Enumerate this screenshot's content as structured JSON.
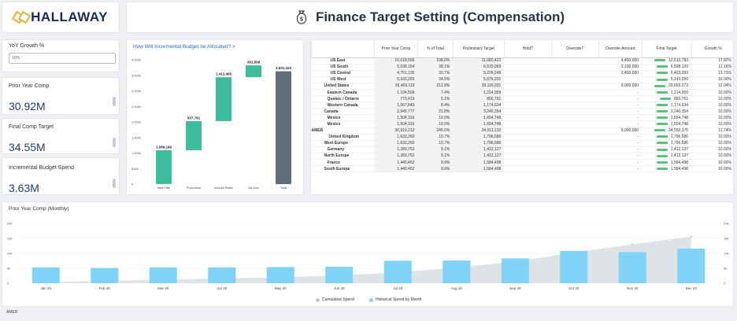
{
  "brand": {
    "name": "HALLAWAY"
  },
  "page": {
    "title": "Finance Target Setting (Compensation)"
  },
  "kpis": {
    "yoy_label": "YoY Growth %",
    "yoy_value": "10%",
    "prior_label": "Prior Year Comp",
    "prior_value": "30.92M",
    "final_label": "Final Comp Target",
    "final_value": "34.55M",
    "incr_label": "Incremental Budget Spend",
    "incr_value": "3.63M"
  },
  "waterfall": {
    "title": "How Will Incremental Budget be Allocated? >",
    "y_ticks": [
      "4,000k",
      "3,500k",
      "3,000k",
      "2,500k",
      "2,000k",
      "1,500k",
      "1,000k",
      "500k",
      "0"
    ]
  },
  "table": {
    "headers": [
      "",
      "Prior Year Comp",
      "% of Total",
      "Preliminary Target",
      "Hold?",
      "Override?",
      "Override Amount",
      "Final Target",
      "Growth %"
    ],
    "rows": [
      [
        "US East",
        "10,618,566",
        "108.6%",
        "11,680,422",
        "",
        "",
        "4,400,000",
        "12,510,783",
        "17.82%"
      ],
      [
        "US South",
        "5,939,154",
        "38.1%",
        "6,533,069",
        "",
        "",
        "3,100,000",
        "6,598,120",
        "11.10%"
      ],
      [
        "US Central",
        "4,751,135",
        "30.7%",
        "5,226,249",
        "",
        "",
        "2,400,000",
        "5,403,393",
        "13.73%"
      ],
      [
        "US West",
        "5,160,265",
        "34.5%",
        "5,676,291",
        "",
        "",
        "-",
        "5,143,050",
        "10.00%"
      ],
      [
        "United States",
        "26,469,119",
        "212.8%",
        "29,116,031",
        "",
        "",
        "9,900,000",
        "29,655,273",
        "12.04%"
      ],
      [
        "Eastern Canada",
        "1,104,509",
        "7.4%",
        "1,214,959",
        "",
        "",
        "-",
        "1,214,959",
        "10.00%"
      ],
      [
        "Quebec / Ontario",
        "773,419",
        "5.1%",
        "850,761",
        "",
        "",
        "-",
        "850,761",
        "10.00%"
      ],
      [
        "Western Canada",
        "1,067,849",
        "8.4%",
        "1,174,634",
        "",
        "",
        "-",
        "1,174,634",
        "10.00%"
      ],
      [
        "Canada",
        "2,945,777",
        "21.8%",
        "3,240,354",
        "",
        "",
        "-",
        "3,240,354",
        "10.00%"
      ],
      [
        "Mexico",
        "1,504,316",
        "10.9%",
        "1,654,748",
        "",
        "",
        "-",
        "1,654,748",
        "10.00%"
      ],
      [
        "Mexico",
        "1,504,316",
        "10.9%",
        "1,654,748",
        "",
        "",
        "-",
        "1,654,748",
        "10.00%"
      ],
      [
        "AMER",
        "30,919,212",
        "245.6%",
        "34,011,133",
        "",
        "",
        "9,900,000",
        "34,550,375",
        "11.74%"
      ],
      [
        "United Kingdom",
        "1,633,260",
        "10.7%",
        "1,796,586",
        "",
        "",
        "-",
        "1,796,586",
        "10.00%"
      ],
      [
        "West Europe",
        "1,633,260",
        "10.7%",
        "1,796,586",
        "",
        "",
        "-",
        "1,796,586",
        "10.00%"
      ],
      [
        "Germany",
        "1,283,752",
        "9.1%",
        "1,412,127",
        "",
        "",
        "-",
        "1,412,127",
        "10.00%"
      ],
      [
        "North Europe",
        "1,283,752",
        "9.1%",
        "1,412,127",
        "",
        "",
        "-",
        "1,412,127",
        "10.00%"
      ],
      [
        "France",
        "1,440,452",
        "9.9%",
        "1,584,498",
        "",
        "",
        "-",
        "1,584,498",
        "10.00%"
      ],
      [
        "South Europe",
        "1,440,452",
        "9.9%",
        "1,584,498",
        "",
        "",
        "-",
        "1,584,498",
        "10.00%"
      ]
    ]
  },
  "monthly": {
    "title": "Prior Year Comp (Monthly)",
    "legend_cumulative": "Cumulative Spend",
    "legend_historical": "Historical Spend by Month",
    "footer": "AMER"
  },
  "colors": {
    "teal": "#3dbd9c",
    "slate": "#5f6e7a",
    "sky": "#7fd3f7",
    "area": "#dfe3e8",
    "green": "#5ac27d"
  },
  "chart_data": [
    {
      "type": "bar",
      "categories": [
        "New Hire",
        "Promotion",
        "Annual Raise",
        "Ad-Hoc",
        "Total"
      ],
      "values": [
        1089149,
        937791,
        1412465,
        381558,
        3631163
      ],
      "data_labels": [
        "1,089,149",
        "937,791",
        "1,412,465",
        "381,558",
        "3,631,163"
      ],
      "ylim": [
        0,
        4000000
      ]
    },
    {
      "type": "bar",
      "categories": [
        "Jan 20",
        "Feb 20",
        "Mar 20",
        "Apr 20",
        "May 20",
        "Jun 20",
        "Jul 20",
        "Aug 20",
        "Sep 20",
        "Oct 20",
        "Nov 20",
        "Dec 20"
      ],
      "y_ticks_left": [
        "20k",
        "15k",
        "10k",
        "5k",
        "0"
      ],
      "y_ticks_right": [
        "20k",
        "15k",
        "10k",
        "5k",
        "0"
      ],
      "series": [
        {
          "name": "Historical Spend by Month",
          "values": [
            5.3,
            5.1,
            5.3,
            5.3,
            5.4,
            5.5,
            7.5,
            7.6,
            8.3,
            10.8,
            10.4,
            11.6
          ]
        },
        {
          "name": "Cumulative Spend",
          "values": [
            0.4,
            0.8,
            1.2,
            1.6,
            2.0,
            2.6,
            3.6,
            5.3,
            7.2,
            10.3,
            13.0,
            15.6
          ]
        }
      ]
    }
  ]
}
